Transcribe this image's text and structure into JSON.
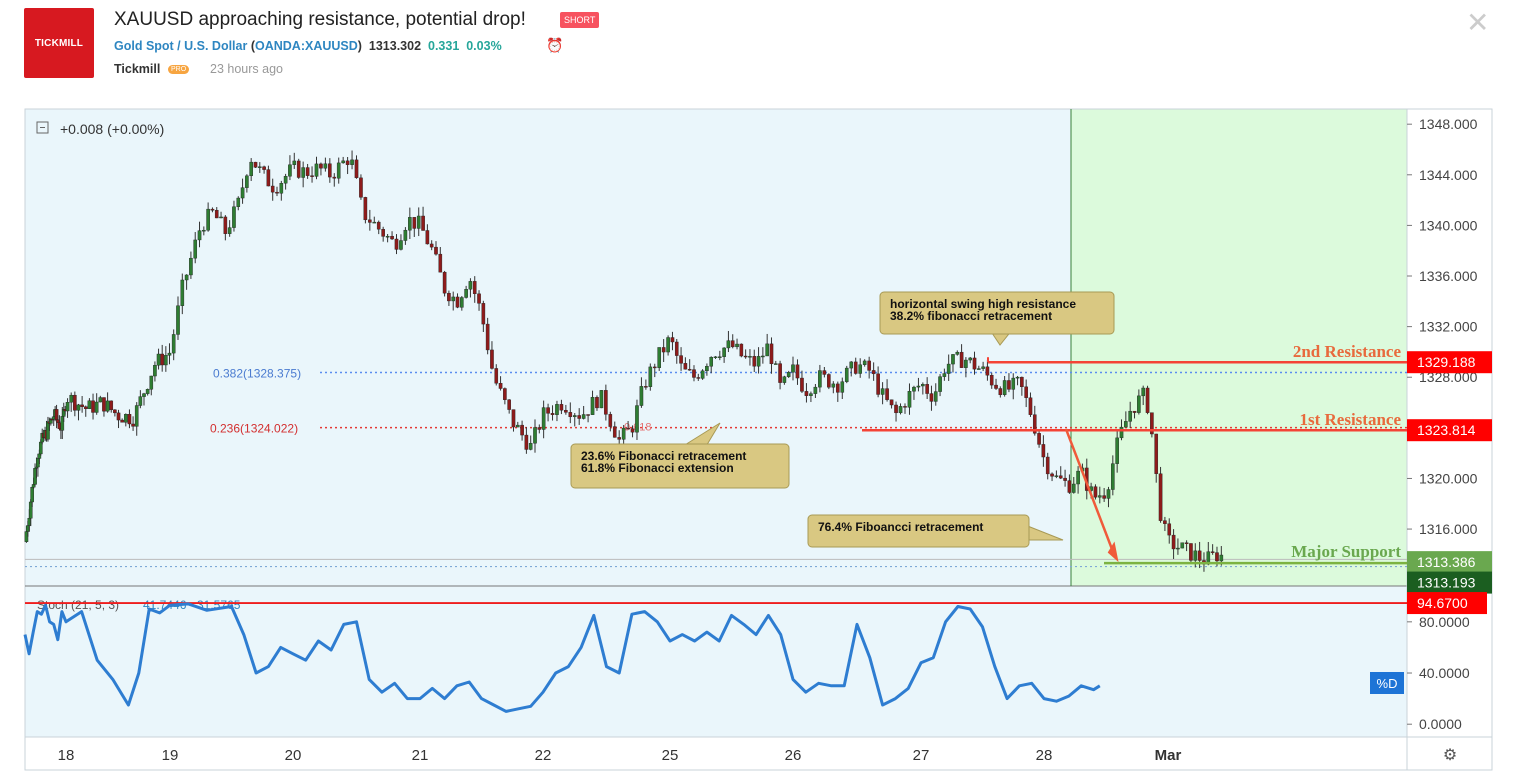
{
  "header": {
    "logo_text": "TICKMILL",
    "title": "XAUUSD approaching resistance, potential drop!",
    "badge": "SHORT",
    "symbol_name": "Gold Spot / U.S. Dollar",
    "symbol_code": "(OANDA:XAUUSD)",
    "price": "1313.302",
    "change": "0.331",
    "change_pct": "0.03%",
    "author": "Tickmill",
    "author_badge": "PRO",
    "time_ago": "23 hours ago",
    "close_icon": "close-icon",
    "alarm_icon": "alarm-clock-icon"
  },
  "chart_data": {
    "type": "candlestick",
    "main": {
      "summary": "+0.008 (+0.00%)",
      "ylim": [
        1311.5,
        1349.2
      ],
      "y_ticks": [
        1348,
        1344,
        1340,
        1336,
        1332,
        1328,
        1324,
        1320,
        1316
      ],
      "y_tick_labels": [
        "1348.000",
        "1344.000",
        "1340.000",
        "1336.000",
        "1332.000",
        "1328.000",
        "1324.000",
        "1320.000",
        "1316.000"
      ],
      "x_labels": [
        "18",
        "19",
        "20",
        "21",
        "22",
        "25",
        "26",
        "27",
        "28",
        "Mar"
      ],
      "close_path": [
        [
          0.0,
          1315.0
        ],
        [
          0.15,
          1318.5
        ],
        [
          0.3,
          1322.0
        ],
        [
          0.5,
          1323.5
        ],
        [
          0.7,
          1325.0
        ],
        [
          0.9,
          1324.0
        ],
        [
          1.0,
          1326.5
        ],
        [
          1.2,
          1325.5
        ],
        [
          1.35,
          1326.0
        ],
        [
          1.5,
          1325.0
        ],
        [
          1.65,
          1324.8
        ],
        [
          1.85,
          1329.0
        ],
        [
          2.0,
          1330.0
        ],
        [
          2.1,
          1335.0
        ],
        [
          2.25,
          1340.0
        ],
        [
          2.35,
          1341.0
        ],
        [
          2.45,
          1339.5
        ],
        [
          2.55,
          1341.5
        ],
        [
          2.65,
          1345.5
        ],
        [
          2.75,
          1344.0
        ],
        [
          2.85,
          1343.0
        ],
        [
          3.0,
          1344.5
        ],
        [
          3.1,
          1344.2
        ],
        [
          3.2,
          1344.5
        ],
        [
          3.3,
          1344.0
        ],
        [
          3.45,
          1345.5
        ],
        [
          3.55,
          1341.0
        ],
        [
          3.7,
          1339.5
        ],
        [
          3.8,
          1338.5
        ],
        [
          3.9,
          1340.5
        ],
        [
          4.0,
          1340.0
        ],
        [
          4.1,
          1338.0
        ],
        [
          4.2,
          1335.0
        ],
        [
          4.3,
          1334.0
        ],
        [
          4.4,
          1336.0
        ],
        [
          4.5,
          1333.0
        ],
        [
          4.6,
          1328.0
        ],
        [
          4.75,
          1324.5
        ],
        [
          4.9,
          1322.5
        ],
        [
          5.0,
          1325.0
        ],
        [
          5.15,
          1326.0
        ],
        [
          5.3,
          1325.0
        ],
        [
          5.45,
          1326.5
        ],
        [
          5.6,
          1323.0
        ],
        [
          5.7,
          1324.0
        ],
        [
          5.8,
          1327.5
        ],
        [
          5.9,
          1329.5
        ],
        [
          6.0,
          1331.0
        ],
        [
          6.1,
          1328.5
        ],
        [
          6.2,
          1328.0
        ],
        [
          6.35,
          1330.0
        ],
        [
          6.5,
          1330.5
        ],
        [
          6.6,
          1329.5
        ],
        [
          6.7,
          1329.0
        ],
        [
          6.8,
          1330.5
        ],
        [
          6.9,
          1327.0
        ],
        [
          7.0,
          1328.5
        ],
        [
          7.1,
          1327.0
        ],
        [
          7.2,
          1328.0
        ],
        [
          7.35,
          1327.5
        ],
        [
          7.5,
          1329.0
        ],
        [
          7.6,
          1328.5
        ],
        [
          7.7,
          1326.5
        ],
        [
          7.8,
          1325.0
        ],
        [
          7.9,
          1326.5
        ],
        [
          8.0,
          1327.5
        ],
        [
          8.1,
          1326.5
        ],
        [
          8.2,
          1329.0
        ],
        [
          8.35,
          1329.5
        ],
        [
          8.5,
          1328.5
        ],
        [
          8.6,
          1327.5
        ],
        [
          8.7,
          1327.0
        ],
        [
          8.8,
          1327.5
        ],
        [
          8.9,
          1325.0
        ],
        [
          9.0,
          1321.5
        ],
        [
          9.1,
          1320.0
        ],
        [
          9.2,
          1319.5
        ],
        [
          9.3,
          1320.5
        ],
        [
          9.4,
          1318.5
        ],
        [
          9.5,
          1319.0
        ],
        [
          9.6,
          1323.0
        ],
        [
          9.7,
          1325.5
        ],
        [
          9.8,
          1326.5
        ],
        [
          9.85,
          1325.5
        ],
        [
          9.9,
          1320.5
        ],
        [
          9.95,
          1316.5
        ],
        [
          10.0,
          1315.0
        ],
        [
          10.1,
          1314.5
        ],
        [
          10.2,
          1314.0
        ],
        [
          10.3,
          1313.5
        ],
        [
          10.4,
          1314.0
        ],
        [
          10.45,
          1313.8
        ]
      ],
      "fib_levels": [
        {
          "label": "0.382(1328.375)",
          "value": 1328.375,
          "color": "#2962ff"
        },
        {
          "label": "0.236(1324.022)",
          "value": 1324.022,
          "color": "#e53935"
        },
        {
          "label": "0.618",
          "value": 1324.022,
          "color": "#e57373"
        }
      ],
      "levels": [
        {
          "name": "2nd Resistance",
          "value": 1329.188,
          "label": "1329.188",
          "color": "#ef5350",
          "tag_color": "#ff0000"
        },
        {
          "name": "1st Resistance",
          "value": 1323.814,
          "label": "1323.814",
          "color": "#ef5350",
          "tag_color": "#ff0000"
        },
        {
          "name": "Major Support",
          "value": 1313.386,
          "label": "1313.386",
          "color": "#6aa84f",
          "tag_color": "#6aa84f"
        },
        {
          "name": "",
          "value": 1313.193,
          "label": "1313.193",
          "color": "#26a69a",
          "tag_color": "#1b5e20"
        }
      ],
      "annotations": [
        {
          "lines": [
            "horizontal swing high resistance",
            "38.2% fibonacci retracement"
          ]
        },
        {
          "lines": [
            "23.6% Fibonacci retracement",
            "61.8% Fibonacci extension"
          ]
        },
        {
          "lines": [
            "76.4% Fiboancci retracement"
          ]
        }
      ]
    },
    "stoch": {
      "title": "Stoch (21, 5, 3)",
      "k": "41.7446",
      "d": "31.5765",
      "ylim": [
        -10,
        108
      ],
      "y_ticks": [
        80,
        40,
        0
      ],
      "y_tick_labels": [
        "80.0000",
        "40.0000",
        "0.0000"
      ],
      "level": {
        "value": 94.67,
        "label": "94.6700"
      },
      "d_label": "%D",
      "path": [
        [
          0.0,
          70
        ],
        [
          0.1,
          55
        ],
        [
          0.2,
          72
        ],
        [
          0.3,
          88
        ],
        [
          0.4,
          86
        ],
        [
          0.5,
          93
        ],
        [
          0.6,
          80
        ],
        [
          0.7,
          78
        ],
        [
          0.8,
          66
        ],
        [
          0.9,
          88
        ],
        [
          1.0,
          80
        ],
        [
          1.15,
          88
        ],
        [
          1.3,
          50
        ],
        [
          1.45,
          35
        ],
        [
          1.6,
          15
        ],
        [
          1.7,
          40
        ],
        [
          1.8,
          90
        ],
        [
          1.9,
          87
        ],
        [
          2.0,
          93
        ],
        [
          2.15,
          94
        ],
        [
          2.3,
          89
        ],
        [
          2.5,
          92
        ],
        [
          2.6,
          70
        ],
        [
          2.7,
          40
        ],
        [
          2.8,
          45
        ],
        [
          2.9,
          60
        ],
        [
          3.0,
          55
        ],
        [
          3.1,
          50
        ],
        [
          3.2,
          65
        ],
        [
          3.3,
          58
        ],
        [
          3.4,
          78
        ],
        [
          3.5,
          80
        ],
        [
          3.6,
          35
        ],
        [
          3.7,
          25
        ],
        [
          3.8,
          32
        ],
        [
          3.9,
          20
        ],
        [
          4.0,
          20
        ],
        [
          4.1,
          28
        ],
        [
          4.2,
          20
        ],
        [
          4.3,
          30
        ],
        [
          4.4,
          33
        ],
        [
          4.5,
          20
        ],
        [
          4.6,
          15
        ],
        [
          4.7,
          10
        ],
        [
          4.8,
          12
        ],
        [
          4.9,
          14
        ],
        [
          5.0,
          25
        ],
        [
          5.1,
          40
        ],
        [
          5.2,
          45
        ],
        [
          5.3,
          60
        ],
        [
          5.4,
          85
        ],
        [
          5.5,
          45
        ],
        [
          5.6,
          40
        ],
        [
          5.7,
          86
        ],
        [
          5.8,
          88
        ],
        [
          5.9,
          80
        ],
        [
          6.0,
          65
        ],
        [
          6.1,
          70
        ],
        [
          6.2,
          65
        ],
        [
          6.3,
          72
        ],
        [
          6.4,
          65
        ],
        [
          6.5,
          85
        ],
        [
          6.6,
          78
        ],
        [
          6.7,
          70
        ],
        [
          6.8,
          85
        ],
        [
          6.9,
          70
        ],
        [
          7.0,
          35
        ],
        [
          7.1,
          25
        ],
        [
          7.2,
          32
        ],
        [
          7.3,
          30
        ],
        [
          7.4,
          30
        ],
        [
          7.5,
          78
        ],
        [
          7.6,
          52
        ],
        [
          7.7,
          15
        ],
        [
          7.8,
          20
        ],
        [
          7.9,
          28
        ],
        [
          8.0,
          48
        ],
        [
          8.1,
          52
        ],
        [
          8.2,
          80
        ],
        [
          8.3,
          92
        ],
        [
          8.4,
          90
        ],
        [
          8.5,
          76
        ],
        [
          8.6,
          45
        ],
        [
          8.7,
          20
        ],
        [
          8.8,
          30
        ],
        [
          8.9,
          32
        ],
        [
          9.0,
          20
        ],
        [
          9.1,
          18
        ],
        [
          9.2,
          22
        ],
        [
          9.3,
          30
        ],
        [
          9.4,
          27
        ],
        [
          9.45,
          30
        ]
      ]
    }
  }
}
